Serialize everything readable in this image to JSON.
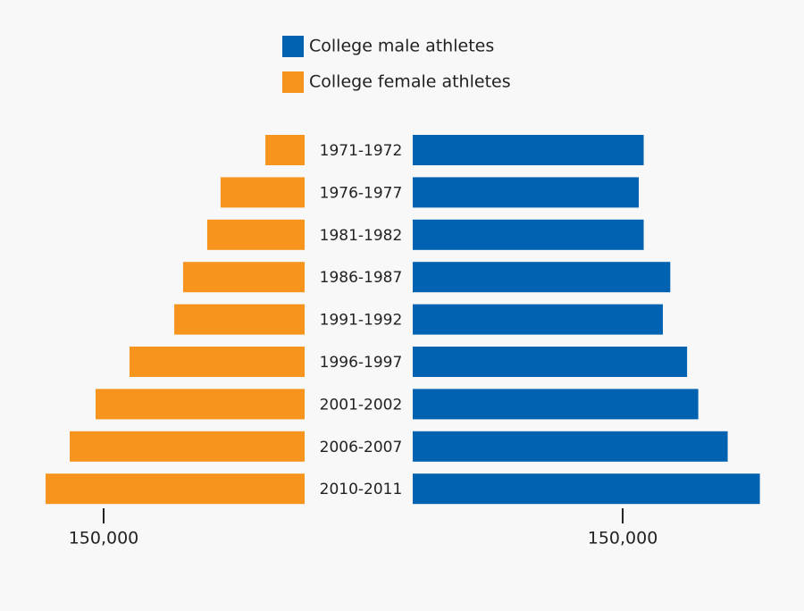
{
  "chart_data": {
    "type": "butterfly-bar",
    "categories": [
      "1971-1972",
      "1976-1977",
      "1981-1982",
      "1986-1987",
      "1991-1992",
      "1996-1997",
      "2001-2002",
      "2006-2007",
      "2010-2011"
    ],
    "series": [
      {
        "name": "College male athletes",
        "color": "#0062b0",
        "values": [
          165000,
          161500,
          165000,
          184000,
          178700,
          196000,
          204000,
          225000,
          248000
        ]
      },
      {
        "name": "College female athletes",
        "color": "#f7941d",
        "axis": "x2",
        "values": [
          29300,
          62700,
          72700,
          90700,
          97300,
          130700,
          156000,
          175300,
          193300
        ]
      }
    ],
    "xlim": [
      0,
      254000
    ],
    "xticks": [
      {
        "value": 150000,
        "label": "150,000"
      }
    ],
    "x2lim": [
      0,
      200000
    ],
    "x2ticks": [
      {
        "value": 150000,
        "label": "150,000"
      }
    ],
    "legend": "top"
  }
}
